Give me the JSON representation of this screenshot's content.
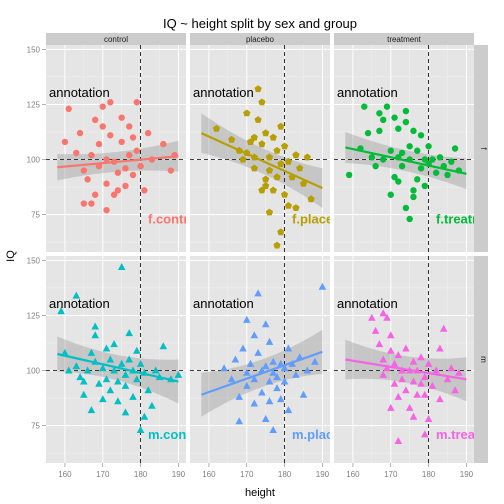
{
  "chart_data": {
    "type": "scatter",
    "title": "IQ ~ height split by sex and group",
    "xlabel": "height",
    "ylabel": "IQ",
    "xlim": [
      155,
      192
    ],
    "ylim": [
      58,
      152
    ],
    "x_ticks": [
      160,
      170,
      180,
      190
    ],
    "y_ticks": [
      75,
      100,
      125,
      150
    ],
    "vline_x": 180,
    "hline_y": 100,
    "grid": true,
    "column_strips": [
      "control",
      "placebo",
      "treatment"
    ],
    "row_strips": [
      "f",
      "m"
    ],
    "panel_annotation": "annotation",
    "panels": [
      {
        "row": "f",
        "col": "control",
        "label": "f.control",
        "color": "#F8766D",
        "marker": "circle",
        "trend": {
          "x": [
            158,
            190
          ],
          "y": [
            96.5,
            101.5
          ]
        },
        "band_halfwidth": [
          6,
          7
        ],
        "points": [
          [
            160,
            108
          ],
          [
            161,
            123
          ],
          [
            163,
            103
          ],
          [
            164,
            112
          ],
          [
            165,
            95
          ],
          [
            166,
            91
          ],
          [
            167,
            102
          ],
          [
            167,
            80
          ],
          [
            168,
            118
          ],
          [
            169,
            107
          ],
          [
            169,
            97
          ],
          [
            170,
            124
          ],
          [
            170,
            115
          ],
          [
            171,
            89
          ],
          [
            171,
            100
          ],
          [
            172,
            126
          ],
          [
            172,
            111
          ],
          [
            173,
            99
          ],
          [
            173,
            84
          ],
          [
            174,
            94
          ],
          [
            174,
            86
          ],
          [
            175,
            119
          ],
          [
            175,
            108
          ],
          [
            176,
            96
          ],
          [
            176,
            88
          ],
          [
            177,
            102
          ],
          [
            177,
            115
          ],
          [
            178,
            93
          ],
          [
            178,
            110
          ],
          [
            179,
            104
          ],
          [
            179,
            126
          ],
          [
            180,
            97
          ],
          [
            181,
            86
          ],
          [
            182,
            112
          ],
          [
            183,
            100
          ],
          [
            186,
            107
          ],
          [
            188,
            95
          ],
          [
            189,
            102
          ],
          [
            171,
            77
          ],
          [
            168,
            84
          ],
          [
            165,
            80
          ]
        ]
      },
      {
        "row": "f",
        "col": "placebo",
        "label": "f.placebo",
        "color": "#B79F00",
        "marker": "pentagon",
        "trend": {
          "x": [
            158,
            190
          ],
          "y": [
            112,
            87
          ]
        },
        "band_halfwidth": [
          9,
          9
        ],
        "points": [
          [
            162,
            114
          ],
          [
            166,
            109
          ],
          [
            168,
            104
          ],
          [
            169,
            100
          ],
          [
            170,
            103
          ],
          [
            171,
            108
          ],
          [
            172,
            96
          ],
          [
            172,
            101
          ],
          [
            173,
            132
          ],
          [
            173,
            118
          ],
          [
            174,
            107
          ],
          [
            174,
            126
          ],
          [
            175,
            88
          ],
          [
            175,
            112
          ],
          [
            176,
            95
          ],
          [
            176,
            101
          ],
          [
            177,
            86
          ],
          [
            177,
            110
          ],
          [
            178,
            92
          ],
          [
            178,
            104
          ],
          [
            179,
            98
          ],
          [
            179,
            115
          ],
          [
            180,
            84
          ],
          [
            180,
            106
          ],
          [
            181,
            99
          ],
          [
            182,
            92
          ],
          [
            183,
            78
          ],
          [
            183,
            102
          ],
          [
            184,
            96
          ],
          [
            185,
            89
          ],
          [
            186,
            101
          ],
          [
            187,
            82
          ],
          [
            174,
            86
          ],
          [
            175,
            91
          ],
          [
            176,
            76
          ],
          [
            178,
            61
          ],
          [
            179,
            67
          ],
          [
            181,
            79
          ],
          [
            170,
            121
          ],
          [
            172,
            110
          ]
        ]
      },
      {
        "row": "f",
        "col": "treatment",
        "label": "f.treatment",
        "color": "#00BA38",
        "marker": "circle",
        "trend": {
          "x": [
            158,
            190
          ],
          "y": [
            105.5,
            93.5
          ]
        },
        "band_halfwidth": [
          7,
          7
        ],
        "points": [
          [
            159,
            93
          ],
          [
            162,
            105
          ],
          [
            163,
            124
          ],
          [
            164,
            112
          ],
          [
            165,
            101
          ],
          [
            166,
            97
          ],
          [
            167,
            113
          ],
          [
            168,
            118
          ],
          [
            168,
            100
          ],
          [
            169,
            124
          ],
          [
            170,
            104
          ],
          [
            171,
            92
          ],
          [
            171,
            119
          ],
          [
            172,
            101
          ],
          [
            172,
            114
          ],
          [
            173,
            103
          ],
          [
            173,
            97
          ],
          [
            174,
            117
          ],
          [
            174,
            122
          ],
          [
            175,
            100
          ],
          [
            175,
            106
          ],
          [
            176,
            83
          ],
          [
            176,
            113
          ],
          [
            177,
            91
          ],
          [
            177,
            104
          ],
          [
            178,
            96
          ],
          [
            178,
            111
          ],
          [
            179,
            100
          ],
          [
            179,
            88
          ],
          [
            180,
            98
          ],
          [
            180,
            106
          ],
          [
            181,
            100
          ],
          [
            182,
            94
          ],
          [
            183,
            101
          ],
          [
            184,
            97
          ],
          [
            185,
            93
          ],
          [
            186,
            99
          ],
          [
            187,
            105
          ],
          [
            188,
            95
          ],
          [
            174,
            78
          ],
          [
            175,
            73
          ],
          [
            176,
            86
          ],
          [
            167,
            121
          ],
          [
            170,
            84
          ],
          [
            172,
            90
          ]
        ]
      },
      {
        "row": "m",
        "col": "control",
        "label": "m.control",
        "color": "#00BFC4",
        "marker": "triangle",
        "trend": {
          "x": [
            158,
            190
          ],
          "y": [
            107.5,
            95
          ]
        },
        "band_halfwidth": [
          8,
          10
        ],
        "points": [
          [
            159,
            127
          ],
          [
            160,
            108
          ],
          [
            161,
            100
          ],
          [
            163,
            102
          ],
          [
            164,
            97
          ],
          [
            165,
            95
          ],
          [
            165,
            89
          ],
          [
            166,
            100
          ],
          [
            167,
            108
          ],
          [
            167,
            82
          ],
          [
            168,
            104
          ],
          [
            168,
            116
          ],
          [
            169,
            94
          ],
          [
            170,
            87
          ],
          [
            170,
            101
          ],
          [
            171,
            110
          ],
          [
            171,
            96
          ],
          [
            172,
            91
          ],
          [
            172,
            105
          ],
          [
            173,
            100
          ],
          [
            173,
            112
          ],
          [
            174,
            95
          ],
          [
            174,
            86
          ],
          [
            175,
            147
          ],
          [
            175,
            103
          ],
          [
            176,
            98
          ],
          [
            176,
            93
          ],
          [
            177,
            117
          ],
          [
            177,
            105
          ],
          [
            178,
            100
          ],
          [
            178,
            88
          ],
          [
            179,
            96
          ],
          [
            179,
            109
          ],
          [
            180,
            103
          ],
          [
            181,
            99
          ],
          [
            181,
            79
          ],
          [
            182,
            91
          ],
          [
            183,
            84
          ],
          [
            184,
            100
          ],
          [
            185,
            97
          ],
          [
            186,
            111
          ],
          [
            188,
            96
          ],
          [
            190,
            98
          ],
          [
            163,
            134
          ],
          [
            168,
            120
          ],
          [
            176,
            81
          ],
          [
            180,
            73
          ]
        ]
      },
      {
        "row": "m",
        "col": "placebo",
        "label": "m.placebo",
        "color": "#619CFF",
        "marker": "triangle",
        "trend": {
          "x": [
            158,
            190
          ],
          "y": [
            89,
            108.5
          ]
        },
        "band_halfwidth": [
          10,
          10
        ],
        "points": [
          [
            164,
            101
          ],
          [
            166,
            96
          ],
          [
            167,
            105
          ],
          [
            168,
            88
          ],
          [
            169,
            110
          ],
          [
            170,
            99
          ],
          [
            170,
            93
          ],
          [
            171,
            103
          ],
          [
            172,
            96
          ],
          [
            172,
            85
          ],
          [
            173,
            108
          ],
          [
            173,
            135
          ],
          [
            174,
            100
          ],
          [
            174,
            90
          ],
          [
            175,
            102
          ],
          [
            175,
            121
          ],
          [
            176,
            95
          ],
          [
            176,
            86
          ],
          [
            177,
            99
          ],
          [
            177,
            104
          ],
          [
            178,
            97
          ],
          [
            178,
            92
          ],
          [
            179,
            103
          ],
          [
            179,
            87
          ],
          [
            180,
            101
          ],
          [
            180,
            95
          ],
          [
            181,
            110
          ],
          [
            182,
            103
          ],
          [
            183,
            98
          ],
          [
            184,
            106
          ],
          [
            186,
            100
          ],
          [
            188,
            104
          ],
          [
            190,
            138
          ],
          [
            175,
            78
          ],
          [
            177,
            73
          ],
          [
            168,
            77
          ],
          [
            170,
            123
          ],
          [
            172,
            116
          ],
          [
            176,
            113
          ],
          [
            181,
            82
          ],
          [
            185,
            89
          ]
        ]
      },
      {
        "row": "m",
        "col": "treatment",
        "label": "m.treatment",
        "color": "#F564E3",
        "marker": "triangle",
        "trend": {
          "x": [
            158,
            190
          ],
          "y": [
            105,
            96
          ]
        },
        "band_halfwidth": [
          9,
          10
        ],
        "points": [
          [
            165,
            124
          ],
          [
            166,
            118
          ],
          [
            167,
            112
          ],
          [
            168,
            105
          ],
          [
            168,
            98
          ],
          [
            169,
            124
          ],
          [
            169,
            101
          ],
          [
            170,
            116
          ],
          [
            170,
            109
          ],
          [
            171,
            94
          ],
          [
            171,
            103
          ],
          [
            172,
            88
          ],
          [
            172,
            107
          ],
          [
            173,
            100
          ],
          [
            173,
            96
          ],
          [
            174,
            110
          ],
          [
            174,
            91
          ],
          [
            175,
            100
          ],
          [
            175,
            83
          ],
          [
            176,
            104
          ],
          [
            176,
            95
          ],
          [
            177,
            100
          ],
          [
            177,
            89
          ],
          [
            178,
            106
          ],
          [
            178,
            94
          ],
          [
            179,
            97
          ],
          [
            179,
            89
          ],
          [
            180,
            103
          ],
          [
            180,
            78
          ],
          [
            181,
            93
          ],
          [
            182,
            100
          ],
          [
            183,
            87
          ],
          [
            183,
            110
          ],
          [
            184,
            119
          ],
          [
            185,
            96
          ],
          [
            186,
            101
          ],
          [
            187,
            91
          ],
          [
            188,
            99
          ],
          [
            172,
            68
          ],
          [
            170,
            83
          ],
          [
            176,
            79
          ],
          [
            179,
            71
          ],
          [
            168,
            126
          ]
        ]
      }
    ]
  }
}
